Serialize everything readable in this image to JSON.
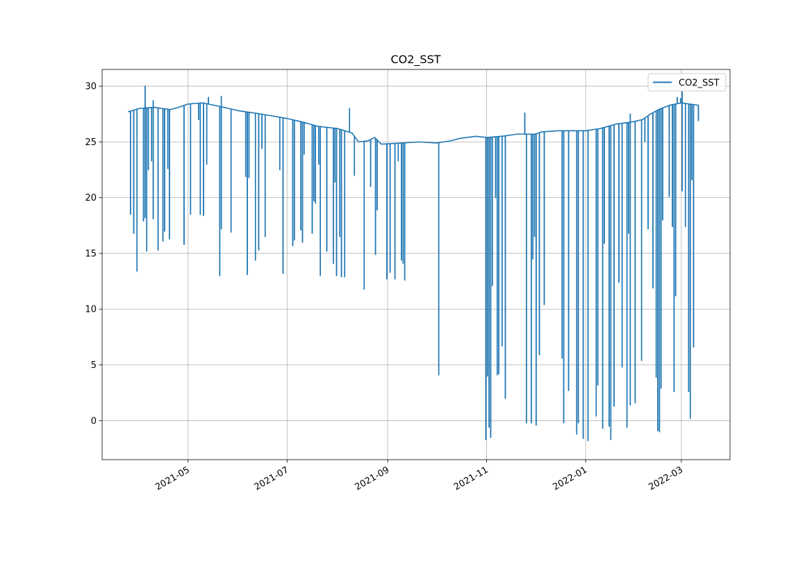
{
  "chart_data": {
    "type": "line",
    "title": "CO2_SST",
    "xlabel": "",
    "ylabel": "",
    "x_axis_type": "date",
    "xlim": [
      "2021-03-09",
      "2022-03-31"
    ],
    "ylim": [
      -3.5,
      31.5
    ],
    "x_ticks": [
      "2021-05-01",
      "2021-07-01",
      "2021-09-01",
      "2021-11-01",
      "2022-01-01",
      "2022-03-01"
    ],
    "x_tick_labels": [
      "2021-05",
      "2021-07",
      "2021-09",
      "2021-11",
      "2022-01",
      "2022-03"
    ],
    "y_ticks": [
      0,
      5,
      10,
      15,
      20,
      25,
      30
    ],
    "y_tick_labels": [
      "0",
      "5",
      "10",
      "15",
      "20",
      "25",
      "30"
    ],
    "grid": true,
    "legend": {
      "position": "top-right",
      "entries": [
        "CO2_SST"
      ]
    },
    "series": [
      {
        "name": "CO2_SST",
        "color": "#1f77b4",
        "baseline": [
          [
            "2021-03-25",
            27.7
          ],
          [
            "2021-04-01",
            28.0
          ],
          [
            "2021-04-10",
            28.1
          ],
          [
            "2021-04-20",
            27.9
          ],
          [
            "2021-04-25",
            28.1
          ],
          [
            "2021-05-01",
            28.4
          ],
          [
            "2021-05-10",
            28.5
          ],
          [
            "2021-05-20",
            28.2
          ],
          [
            "2021-06-01",
            27.8
          ],
          [
            "2021-06-15",
            27.5
          ],
          [
            "2021-07-01",
            27.1
          ],
          [
            "2021-07-10",
            26.8
          ],
          [
            "2021-07-20",
            26.4
          ],
          [
            "2021-08-01",
            26.2
          ],
          [
            "2021-08-10",
            25.8
          ],
          [
            "2021-08-14",
            25.0
          ],
          [
            "2021-08-20",
            25.1
          ],
          [
            "2021-08-24",
            25.4
          ],
          [
            "2021-08-28",
            24.8
          ],
          [
            "2021-09-10",
            24.9
          ],
          [
            "2021-09-20",
            25.0
          ],
          [
            "2021-10-01",
            24.9
          ],
          [
            "2021-10-10",
            25.1
          ],
          [
            "2021-10-15",
            25.3
          ],
          [
            "2021-10-25",
            25.5
          ],
          [
            "2021-11-01",
            25.4
          ],
          [
            "2021-11-10",
            25.5
          ],
          [
            "2021-11-20",
            25.7
          ],
          [
            "2021-12-01",
            25.7
          ],
          [
            "2021-12-05",
            25.9
          ],
          [
            "2021-12-15",
            26.0
          ],
          [
            "2021-12-25",
            26.0
          ],
          [
            "2022-01-01",
            26.0
          ],
          [
            "2022-01-10",
            26.2
          ],
          [
            "2022-01-20",
            26.6
          ],
          [
            "2022-01-30",
            26.8
          ],
          [
            "2022-02-05",
            27.0
          ],
          [
            "2022-02-10",
            27.5
          ],
          [
            "2022-02-15",
            27.9
          ],
          [
            "2022-02-22",
            28.3
          ],
          [
            "2022-03-01",
            28.5
          ],
          [
            "2022-03-11",
            28.3
          ]
        ],
        "dips": [
          [
            "2021-03-26",
            18.5
          ],
          [
            "2021-03-28",
            16.8
          ],
          [
            "2021-03-30",
            13.4
          ],
          [
            "2021-04-03",
            17.9
          ],
          [
            "2021-04-04",
            18.2
          ],
          [
            "2021-04-05",
            15.2
          ],
          [
            "2021-04-06",
            22.5
          ],
          [
            "2021-04-08",
            23.3
          ],
          [
            "2021-04-09",
            18.1
          ],
          [
            "2021-04-12",
            15.3
          ],
          [
            "2021-04-15",
            16.1
          ],
          [
            "2021-04-16",
            17.0
          ],
          [
            "2021-04-18",
            22.6
          ],
          [
            "2021-04-19",
            16.3
          ],
          [
            "2021-04-28",
            15.8
          ],
          [
            "2021-05-02",
            18.5
          ],
          [
            "2021-05-07",
            27.0
          ],
          [
            "2021-05-08",
            18.5
          ],
          [
            "2021-05-10",
            18.4
          ],
          [
            "2021-05-12",
            23.0
          ],
          [
            "2021-05-20",
            13.0
          ],
          [
            "2021-05-21",
            17.2
          ],
          [
            "2021-05-27",
            16.9
          ],
          [
            "2021-06-05",
            21.9
          ],
          [
            "2021-06-06",
            13.1
          ],
          [
            "2021-06-07",
            21.8
          ],
          [
            "2021-06-11",
            14.4
          ],
          [
            "2021-06-13",
            15.3
          ],
          [
            "2021-06-15",
            24.4
          ],
          [
            "2021-06-17",
            16.5
          ],
          [
            "2021-06-26",
            22.5
          ],
          [
            "2021-06-28",
            13.2
          ],
          [
            "2021-07-04",
            15.7
          ],
          [
            "2021-07-05",
            16.2
          ],
          [
            "2021-07-09",
            17.1
          ],
          [
            "2021-07-10",
            16.0
          ],
          [
            "2021-07-11",
            23.9
          ],
          [
            "2021-07-16",
            16.8
          ],
          [
            "2021-07-17",
            19.7
          ],
          [
            "2021-07-18",
            19.5
          ],
          [
            "2021-07-20",
            23.0
          ],
          [
            "2021-07-21",
            13.0
          ],
          [
            "2021-07-25",
            15.2
          ],
          [
            "2021-07-29",
            14.1
          ],
          [
            "2021-07-30",
            21.4
          ],
          [
            "2021-07-31",
            13.0
          ],
          [
            "2021-08-02",
            16.5
          ],
          [
            "2021-08-03",
            12.9
          ],
          [
            "2021-08-05",
            12.9
          ],
          [
            "2021-08-11",
            22.0
          ],
          [
            "2021-08-17",
            11.8
          ],
          [
            "2021-08-21",
            21.0
          ],
          [
            "2021-08-24",
            14.9
          ],
          [
            "2021-08-25",
            18.9
          ],
          [
            "2021-08-31",
            12.7
          ],
          [
            "2021-09-02",
            13.3
          ],
          [
            "2021-09-05",
            12.7
          ],
          [
            "2021-09-07",
            23.3
          ],
          [
            "2021-09-09",
            14.4
          ],
          [
            "2021-09-10",
            14.1
          ],
          [
            "2021-09-11",
            12.6
          ],
          [
            "2021-10-02",
            4.1
          ],
          [
            "2021-10-31",
            -1.7
          ],
          [
            "2021-11-01",
            4.0
          ],
          [
            "2021-11-02",
            -0.6
          ],
          [
            "2021-11-03",
            -1.5
          ],
          [
            "2021-11-04",
            12.1
          ],
          [
            "2021-11-06",
            20.0
          ],
          [
            "2021-11-07",
            4.1
          ],
          [
            "2021-11-08",
            4.2
          ],
          [
            "2021-11-10",
            6.7
          ],
          [
            "2021-11-12",
            2.0
          ],
          [
            "2021-11-25",
            -0.2
          ],
          [
            "2021-11-28",
            -0.2
          ],
          [
            "2021-11-29",
            14.5
          ],
          [
            "2021-11-30",
            16.5
          ],
          [
            "2021-12-01",
            -0.4
          ],
          [
            "2021-12-03",
            5.9
          ],
          [
            "2021-12-06",
            10.4
          ],
          [
            "2021-12-17",
            5.6
          ],
          [
            "2021-12-18",
            -0.2
          ],
          [
            "2021-12-21",
            2.7
          ],
          [
            "2021-12-26",
            -1.2
          ],
          [
            "2021-12-27",
            -0.2
          ],
          [
            "2021-12-30",
            -1.6
          ],
          [
            "2022-01-02",
            -1.8
          ],
          [
            "2022-01-07",
            0.4
          ],
          [
            "2022-01-08",
            3.2
          ],
          [
            "2022-01-11",
            -0.7
          ],
          [
            "2022-01-12",
            15.9
          ],
          [
            "2022-01-15",
            -0.5
          ],
          [
            "2022-01-16",
            -1.7
          ],
          [
            "2022-01-18",
            1.3
          ],
          [
            "2022-01-21",
            12.4
          ],
          [
            "2022-01-23",
            4.8
          ],
          [
            "2022-01-26",
            -0.6
          ],
          [
            "2022-01-27",
            16.8
          ],
          [
            "2022-01-28",
            1.4
          ],
          [
            "2022-01-31",
            1.6
          ],
          [
            "2022-02-04",
            5.4
          ],
          [
            "2022-02-06",
            25.0
          ],
          [
            "2022-02-08",
            17.2
          ],
          [
            "2022-02-11",
            11.9
          ],
          [
            "2022-02-13",
            3.9
          ],
          [
            "2022-02-14",
            -0.9
          ],
          [
            "2022-02-15",
            -1.0
          ],
          [
            "2022-02-16",
            2.9
          ],
          [
            "2022-02-17",
            18.0
          ],
          [
            "2022-02-21",
            20.1
          ],
          [
            "2022-02-23",
            17.4
          ],
          [
            "2022-02-24",
            2.6
          ],
          [
            "2022-02-25",
            11.2
          ],
          [
            "2022-03-01",
            20.6
          ],
          [
            "2022-03-03",
            17.4
          ],
          [
            "2022-03-05",
            2.6
          ],
          [
            "2022-03-06",
            0.2
          ],
          [
            "2022-03-07",
            21.6
          ],
          [
            "2022-03-08",
            6.6
          ],
          [
            "2022-03-11",
            26.9
          ]
        ],
        "spikes": [
          [
            "2021-04-04",
            30.0
          ],
          [
            "2021-04-09",
            28.7
          ],
          [
            "2021-05-13",
            29.0
          ],
          [
            "2021-05-21",
            29.1
          ],
          [
            "2021-08-08",
            28.0
          ],
          [
            "2021-11-24",
            27.6
          ],
          [
            "2022-01-28",
            27.5
          ],
          [
            "2022-02-26",
            29.0
          ],
          [
            "2022-02-28",
            28.9
          ],
          [
            "2022-03-01",
            29.5
          ]
        ]
      }
    ]
  }
}
